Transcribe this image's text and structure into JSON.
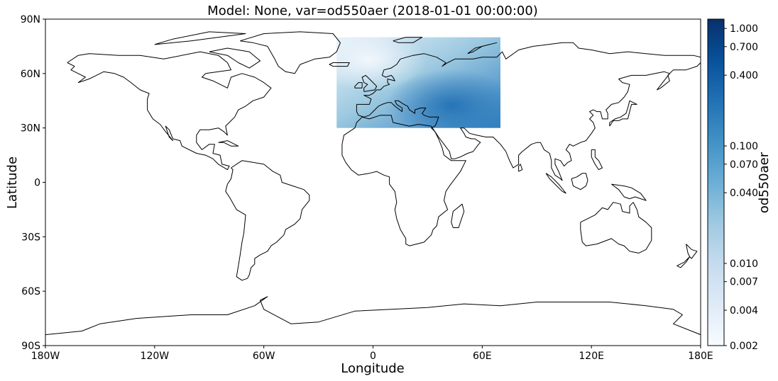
{
  "chart_data": {
    "type": "heatmap",
    "title": "Model: None, var=od550aer (2018-01-01 00:00:00)",
    "xlabel": "Longitude",
    "ylabel": "Latitude",
    "xlim": [
      -180,
      180
    ],
    "ylim": [
      -90,
      90
    ],
    "x_ticks": [
      -180,
      -120,
      -60,
      0,
      60,
      120,
      180
    ],
    "x_tick_labels": [
      "180W",
      "120W",
      "60W",
      "0",
      "60E",
      "120E",
      "180E"
    ],
    "y_ticks": [
      90,
      60,
      30,
      0,
      -30,
      -60,
      -90
    ],
    "y_tick_labels": [
      "90N",
      "60N",
      "30N",
      "0",
      "30S",
      "60S",
      "90S"
    ],
    "data_extent": {
      "lon": [
        -20,
        70
      ],
      "lat": [
        30,
        80
      ]
    },
    "colorbar": {
      "label": "od550aer",
      "colormap": "Blues",
      "scale": "log",
      "ticks": [
        0.002,
        0.004,
        0.007,
        0.01,
        0.04,
        0.07,
        0.1,
        0.4,
        0.7,
        1.0
      ],
      "tick_labels": [
        "0.002",
        "0.004",
        "0.007",
        "0.010",
        "0.040",
        "0.070",
        "0.100",
        "0.400",
        "0.700",
        "1.000"
      ]
    },
    "grid": false
  },
  "colors": {
    "blues": [
      "#f7fbff",
      "#deebf7",
      "#c6dbef",
      "#9ecae1",
      "#6baed6",
      "#4292c6",
      "#2171b5",
      "#08519c",
      "#08306b"
    ]
  }
}
